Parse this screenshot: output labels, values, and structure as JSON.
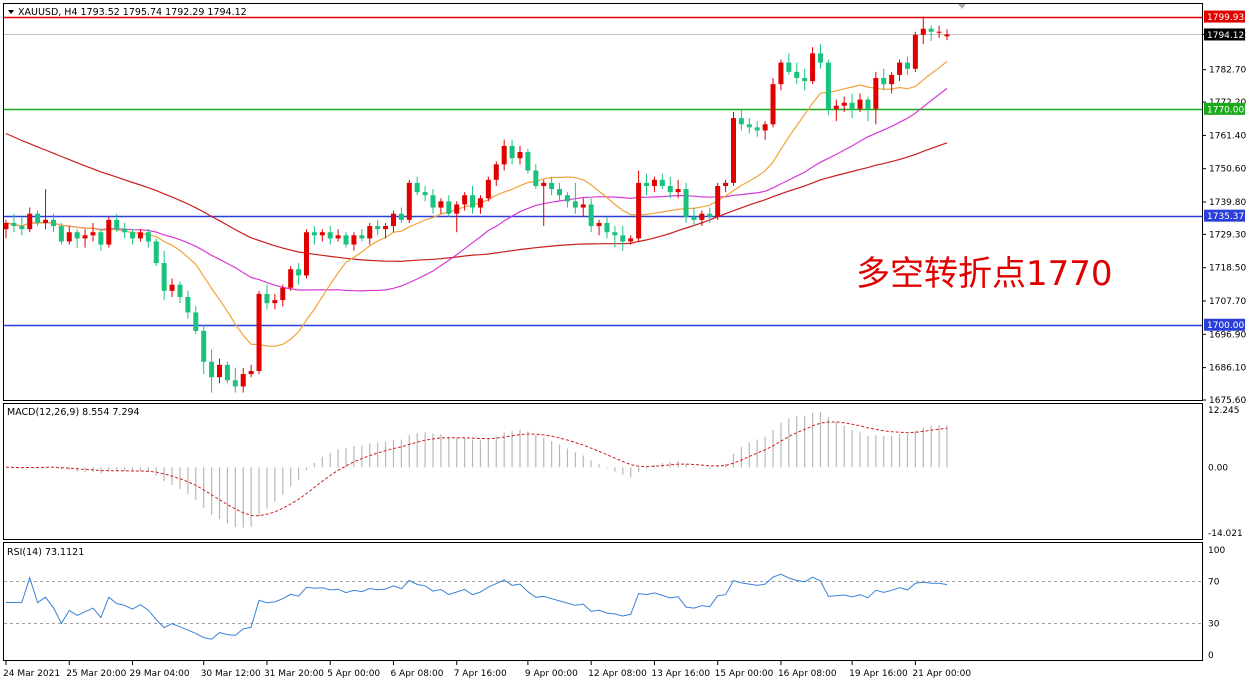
{
  "chart_data": {
    "type": "candlestick",
    "header": {
      "symbol_line": "XAUUSD, H4  1793.52 1795.74 1792.29 1794.12"
    },
    "annotation": "多空转折点1770",
    "price_axis": {
      "ticks": [
        "1675.60",
        "1686.10",
        "1696.90",
        "1707.70",
        "1718.50",
        "1729.30",
        "1739.80",
        "1750.60",
        "1761.40",
        "1772.20",
        "1782.70",
        "1794.12"
      ],
      "range": [
        1675.6,
        1804.0
      ]
    },
    "time_axis": {
      "ticks": [
        "24 Mar 2021",
        "25 Mar 20:00",
        "29 Mar 04:00",
        "30 Mar 12:00",
        "31 Mar 20:00",
        "5 Apr 00:00",
        "6 Apr 08:00",
        "7 Apr 16:00",
        "9 Apr 00:00",
        "12 Apr 08:00",
        "13 Apr 16:00",
        "15 Apr 00:00",
        "16 Apr 08:00",
        "19 Apr 16:00",
        "21 Apr 00:00"
      ]
    },
    "levels": [
      {
        "label": "1799.93",
        "value": 1799.93,
        "color": "#e00000"
      },
      {
        "label": "1770.00",
        "value": 1770.0,
        "color": "#1aaa1a"
      },
      {
        "label": "1735.37",
        "value": 1735.37,
        "color": "#2a3fd9"
      },
      {
        "label": "1700.00",
        "value": 1700.0,
        "color": "#2a3fd9"
      }
    ],
    "current_price": {
      "label": "1794.12",
      "value": 1794.12
    },
    "candles": [
      [
        1731,
        1734,
        1728,
        1733
      ],
      [
        1733,
        1736,
        1730,
        1732
      ],
      [
        1732,
        1735,
        1729,
        1731
      ],
      [
        1731,
        1738,
        1730,
        1736
      ],
      [
        1736,
        1737,
        1732,
        1733
      ],
      [
        1733,
        1744,
        1731,
        1734
      ],
      [
        1734,
        1736,
        1730,
        1732
      ],
      [
        1732,
        1733,
        1726,
        1727
      ],
      [
        1727,
        1732,
        1726,
        1730
      ],
      [
        1730,
        1731,
        1725,
        1728
      ],
      [
        1728,
        1731,
        1725,
        1729
      ],
      [
        1729,
        1733,
        1727,
        1730
      ],
      [
        1730,
        1731,
        1724,
        1726
      ],
      [
        1726,
        1735,
        1725,
        1734
      ],
      [
        1734,
        1736,
        1730,
        1731
      ],
      [
        1731,
        1733,
        1728,
        1730
      ],
      [
        1730,
        1731,
        1726,
        1728
      ],
      [
        1728,
        1731,
        1727,
        1730
      ],
      [
        1730,
        1731,
        1725,
        1727
      ],
      [
        1727,
        1728,
        1719,
        1720
      ],
      [
        1720,
        1724,
        1708,
        1711
      ],
      [
        1711,
        1715,
        1709,
        1713
      ],
      [
        1713,
        1714,
        1707,
        1709
      ],
      [
        1709,
        1711,
        1702,
        1704
      ],
      [
        1704,
        1706,
        1697,
        1698
      ],
      [
        1698,
        1700,
        1684,
        1688
      ],
      [
        1688,
        1692,
        1678,
        1683
      ],
      [
        1683,
        1689,
        1681,
        1687
      ],
      [
        1687,
        1688,
        1681,
        1682
      ],
      [
        1682,
        1686,
        1678,
        1680
      ],
      [
        1680,
        1686,
        1678,
        1684
      ],
      [
        1684,
        1687,
        1683,
        1685
      ],
      [
        1685,
        1711,
        1684,
        1710
      ],
      [
        1710,
        1713,
        1705,
        1707
      ],
      [
        1707,
        1710,
        1705,
        1708
      ],
      [
        1708,
        1713,
        1706,
        1712
      ],
      [
        1712,
        1719,
        1711,
        1718
      ],
      [
        1718,
        1720,
        1713,
        1716
      ],
      [
        1716,
        1731,
        1715,
        1730
      ],
      [
        1730,
        1732,
        1726,
        1729
      ],
      [
        1729,
        1731,
        1727,
        1730
      ],
      [
        1730,
        1732,
        1726,
        1728
      ],
      [
        1728,
        1731,
        1727,
        1729
      ],
      [
        1729,
        1730,
        1725,
        1726
      ],
      [
        1726,
        1730,
        1724,
        1729
      ],
      [
        1729,
        1731,
        1727,
        1728
      ],
      [
        1728,
        1733,
        1726,
        1732
      ],
      [
        1732,
        1734,
        1729,
        1731
      ],
      [
        1731,
        1733,
        1728,
        1732
      ],
      [
        1732,
        1737,
        1730,
        1736
      ],
      [
        1736,
        1738,
        1733,
        1734
      ],
      [
        1734,
        1747,
        1733,
        1746
      ],
      [
        1746,
        1748,
        1742,
        1743
      ],
      [
        1743,
        1745,
        1740,
        1742
      ],
      [
        1742,
        1744,
        1736,
        1738
      ],
      [
        1738,
        1741,
        1736,
        1740
      ],
      [
        1740,
        1742,
        1735,
        1736
      ],
      [
        1736,
        1740,
        1730,
        1739
      ],
      [
        1739,
        1743,
        1737,
        1742
      ],
      [
        1742,
        1745,
        1736,
        1738
      ],
      [
        1738,
        1742,
        1736,
        1741
      ],
      [
        1741,
        1748,
        1740,
        1747
      ],
      [
        1747,
        1753,
        1745,
        1752
      ],
      [
        1752,
        1760,
        1750,
        1758
      ],
      [
        1758,
        1760,
        1752,
        1754
      ],
      [
        1754,
        1758,
        1752,
        1756
      ],
      [
        1756,
        1757,
        1749,
        1750
      ],
      [
        1750,
        1752,
        1744,
        1745
      ],
      [
        1745,
        1747,
        1732,
        1746
      ],
      [
        1746,
        1748,
        1742,
        1744
      ],
      [
        1744,
        1746,
        1740,
        1742
      ],
      [
        1742,
        1743,
        1738,
        1740
      ],
      [
        1740,
        1746,
        1736,
        1738
      ],
      [
        1738,
        1741,
        1735,
        1739
      ],
      [
        1739,
        1741,
        1730,
        1732
      ],
      [
        1732,
        1734,
        1729,
        1733
      ],
      [
        1733,
        1735,
        1728,
        1730
      ],
      [
        1730,
        1732,
        1725,
        1729
      ],
      [
        1729,
        1732,
        1724,
        1727
      ],
      [
        1727,
        1729,
        1726,
        1728
      ],
      [
        1728,
        1750,
        1727,
        1746
      ],
      [
        1746,
        1749,
        1742,
        1745
      ],
      [
        1745,
        1748,
        1743,
        1747
      ],
      [
        1747,
        1749,
        1744,
        1745
      ],
      [
        1745,
        1748,
        1741,
        1743
      ],
      [
        1743,
        1747,
        1741,
        1744
      ],
      [
        1744,
        1746,
        1733,
        1735
      ],
      [
        1735,
        1738,
        1732,
        1734
      ],
      [
        1734,
        1737,
        1732,
        1736
      ],
      [
        1736,
        1738,
        1733,
        1735
      ],
      [
        1735,
        1746,
        1734,
        1745
      ],
      [
        1745,
        1747,
        1743,
        1746
      ],
      [
        1746,
        1769,
        1745,
        1767
      ],
      [
        1767,
        1770,
        1763,
        1765
      ],
      [
        1765,
        1767,
        1762,
        1764
      ],
      [
        1764,
        1766,
        1761,
        1763
      ],
      [
        1763,
        1766,
        1760,
        1765
      ],
      [
        1765,
        1780,
        1764,
        1778
      ],
      [
        1778,
        1786,
        1776,
        1785
      ],
      [
        1785,
        1788,
        1781,
        1782
      ],
      [
        1782,
        1785,
        1778,
        1780
      ],
      [
        1780,
        1783,
        1776,
        1779
      ],
      [
        1779,
        1790,
        1778,
        1788
      ],
      [
        1788,
        1791,
        1783,
        1785
      ],
      [
        1785,
        1786,
        1768,
        1770
      ],
      [
        1770,
        1773,
        1766,
        1771
      ],
      [
        1771,
        1774,
        1769,
        1772
      ],
      [
        1772,
        1775,
        1767,
        1770
      ],
      [
        1770,
        1775,
        1769,
        1773
      ],
      [
        1773,
        1774,
        1766,
        1770
      ],
      [
        1770,
        1782,
        1765,
        1780
      ],
      [
        1780,
        1783,
        1776,
        1778
      ],
      [
        1778,
        1782,
        1775,
        1781
      ],
      [
        1781,
        1786,
        1779,
        1785
      ],
      [
        1785,
        1787,
        1781,
        1783
      ],
      [
        1783,
        1795,
        1782,
        1794
      ],
      [
        1794,
        1800,
        1791,
        1796
      ],
      [
        1796,
        1797,
        1792,
        1795
      ],
      [
        1795,
        1797,
        1793,
        1795
      ],
      [
        1793.52,
        1795.74,
        1792.29,
        1794.12
      ]
    ],
    "indicators": {
      "macd": {
        "label": "MACD(12,26,9) 8.554 7.294",
        "ticks": [
          "12.245",
          "0.00",
          "-14.021"
        ],
        "range": [
          -14.021,
          12.245
        ]
      },
      "rsi": {
        "label": "RSI(14) 73.1121",
        "ticks": [
          "100",
          "70",
          "30",
          "0"
        ],
        "range": [
          0,
          100
        ],
        "levels": [
          70,
          30
        ]
      }
    },
    "colors": {
      "up_candle": "#e00000",
      "down_candle": "#19c37d",
      "ma_fast": "#f2a33a",
      "ma_mid": "#d63ad6",
      "ma_slow": "#c81e1e",
      "macd_hist": "#b8b8b8",
      "macd_signal": "#d01f1f",
      "rsi_line": "#3a82d8",
      "grid": "#a0a0a0",
      "annotation": "#e00000"
    }
  }
}
